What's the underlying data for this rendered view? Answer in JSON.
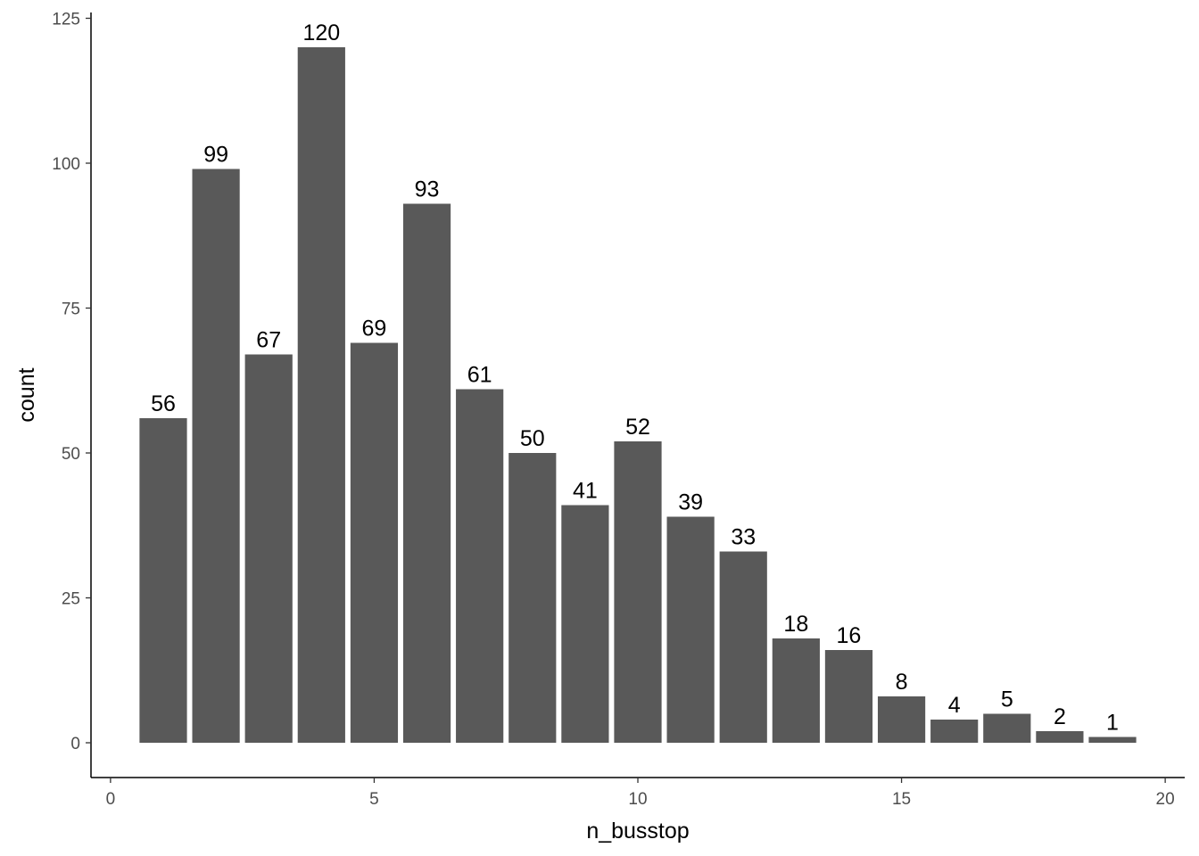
{
  "chart_data": {
    "type": "bar",
    "title": "",
    "xlabel": "n_busstop",
    "ylabel": "count",
    "x": [
      1,
      2,
      3,
      4,
      5,
      6,
      7,
      8,
      9,
      10,
      11,
      12,
      13,
      14,
      15,
      16,
      17,
      18,
      19
    ],
    "values": [
      56,
      99,
      67,
      120,
      69,
      93,
      61,
      50,
      41,
      52,
      39,
      33,
      18,
      16,
      8,
      4,
      5,
      2,
      1
    ],
    "data_labels": [
      "56",
      "99",
      "67",
      "120",
      "69",
      "93",
      "61",
      "50",
      "41",
      "52",
      "39",
      "33",
      "18",
      "16",
      "8",
      "4",
      "5",
      "2",
      "1"
    ],
    "xlim": [
      -0.37,
      20.37
    ],
    "ylim": [
      -6.0,
      126.0
    ],
    "x_ticks": [
      0,
      5,
      10,
      15,
      20
    ],
    "x_tick_labels": [
      "0",
      "5",
      "10",
      "15",
      "20"
    ],
    "y_ticks": [
      0,
      25,
      50,
      75,
      100,
      125
    ],
    "y_tick_labels": [
      "0",
      "25",
      "50",
      "75",
      "100",
      "125"
    ],
    "grid": false,
    "legend": "none",
    "bar_color": "#595959"
  }
}
